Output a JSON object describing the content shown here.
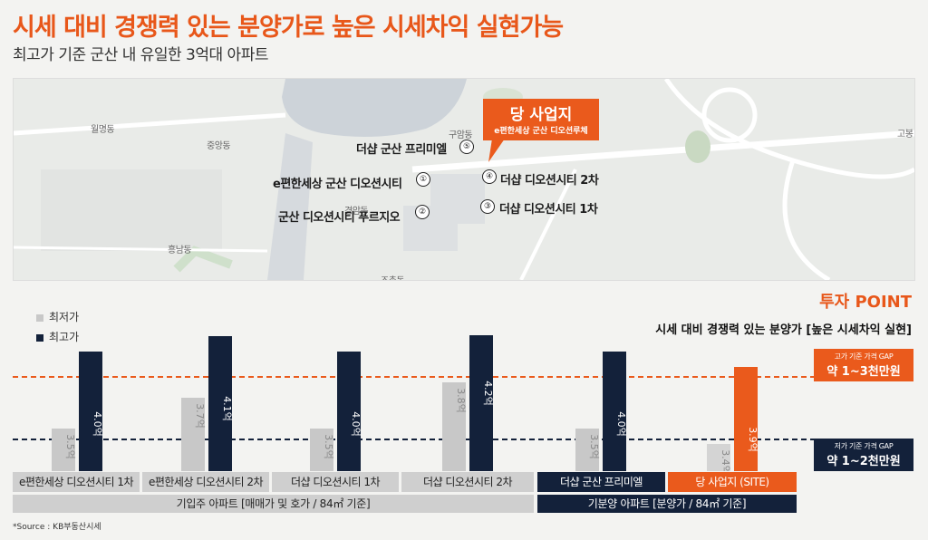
{
  "header": {
    "title": "시세 대비 경쟁력 있는 분양가로 높은 시세차익 실현가능",
    "subtitle": "최고가 기준 군산 내 유일한 3억대 아파트"
  },
  "map": {
    "site_title": "당 사업지",
    "site_sub": "e편한세상 군산 디오션루체",
    "places": [
      {
        "num": "①",
        "name": "e편한세상 군산 디오션시티"
      },
      {
        "num": "②",
        "name": "군산 디오션시티 푸르지오"
      },
      {
        "num": "③",
        "name": "더샵 디오션시티 1차"
      },
      {
        "num": "④",
        "name": "더샵 디오션시티 2차"
      },
      {
        "num": "⑤",
        "name": "더샵 군산 프리미엘"
      }
    ],
    "districts": [
      "월명동",
      "중앙동",
      "경암동",
      "흥남동",
      "구암동",
      "조촌동",
      "고봉"
    ]
  },
  "point": {
    "title": "투자 POINT",
    "subtitle": "시세 대비 경쟁력 있는 분양가 [높은 시세차익 실현]"
  },
  "legend": {
    "min": "최저가",
    "max": "최고가"
  },
  "gaps": {
    "high": {
      "small": "고가 기준 가격 GAP",
      "big": "약 1~3천만원"
    },
    "low": {
      "small": "저가 기준 가격 GAP",
      "big": "약 1~2천만원"
    }
  },
  "chart_data": {
    "type": "bar",
    "unit": "억",
    "categories": [
      "e편한세상 디오션시티 1차",
      "e편한세상 디오션시티 2차",
      "더샵 디오션시티 1차",
      "더샵 디오션시티 2차",
      "더샵 군산 프리미엘",
      "당 사업지 (SITE)"
    ],
    "series": [
      {
        "name": "최저가",
        "values": [
          3.5,
          3.7,
          3.5,
          3.8,
          3.5,
          3.4
        ],
        "labels": [
          "3.5억",
          "3.7억",
          "3.5억",
          "3.8억",
          "3.5억",
          "3.4억"
        ]
      },
      {
        "name": "최고가",
        "values": [
          4.0,
          4.1,
          4.0,
          4.2,
          4.0,
          3.9
        ],
        "labels": [
          "4.0억",
          "4.1억",
          "4.0억",
          "4.2억",
          "4.0억",
          "3.9억"
        ]
      }
    ],
    "groups": [
      {
        "label": "기입주 아파트 [매매가 및 호가 / 84㎡ 기준]",
        "span": 4
      },
      {
        "label": "기분양 아파트 [분양가 / 84㎡ 기준]",
        "span": 2
      }
    ],
    "colors": {
      "min": "#c8c8c8",
      "max": "#13213a",
      "site": "#ea5a1c",
      "site_min": "#d4d4d4",
      "dashed_high": "#ea5a1c",
      "dashed_low": "#13213a"
    }
  },
  "source": "*Source : KB부동산시세"
}
